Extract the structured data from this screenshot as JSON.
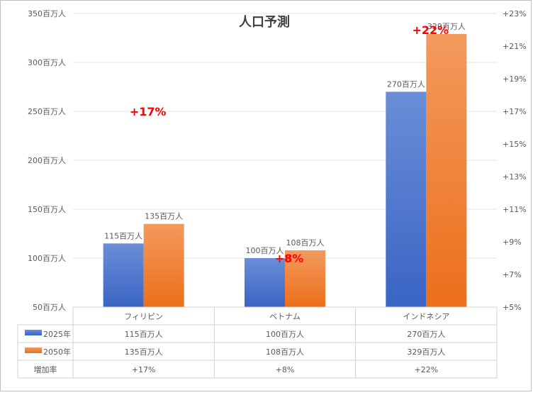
{
  "chart_data": {
    "type": "bar",
    "title": "人口予測",
    "categories": [
      "フィリピン",
      "ベトナム",
      "インドネシア"
    ],
    "series": [
      {
        "name": "2025年",
        "values": [
          115,
          100,
          270
        ],
        "labels": [
          "115百万人",
          "100百万人",
          "270百万人"
        ],
        "color_top": "#6a8ed6",
        "color_bottom": "#3a64c4"
      },
      {
        "name": "2050年",
        "values": [
          135,
          108,
          329
        ],
        "labels": [
          "135百万人",
          "108百万人",
          "329百万人"
        ],
        "color_top": "#f39a5e",
        "color_bottom": "#ec6f1a"
      }
    ],
    "growth_rate": {
      "name": "増加率",
      "values": [
        17,
        8,
        22
      ],
      "labels": [
        "+17%",
        "+8%",
        "+22%"
      ],
      "color": "#ff0000"
    },
    "ylim": [
      50,
      350
    ],
    "y_ticks": [
      50,
      100,
      150,
      200,
      250,
      300,
      350
    ],
    "y_tick_labels": [
      "50百万人",
      "100百万人",
      "150百万人",
      "200百万人",
      "250百万人",
      "300百万人",
      "350百万人"
    ],
    "y2lim": [
      5,
      23
    ],
    "y2_ticks": [
      5,
      7,
      9,
      11,
      13,
      15,
      17,
      19,
      21,
      23
    ],
    "y2_tick_labels": [
      "+5%",
      "+7%",
      "+9%",
      "+11%",
      "+13%",
      "+15%",
      "+17%",
      "+19%",
      "+21%",
      "+23%"
    ],
    "grid": true,
    "table": {
      "rows": [
        {
          "label": "2025年",
          "cells": [
            "115百万人",
            "100百万人",
            "270百万人"
          ]
        },
        {
          "label": "2050年",
          "cells": [
            "135百万人",
            "108百万人",
            "329百万人"
          ]
        },
        {
          "label": "増加率",
          "cells": [
            "+17%",
            "+8%",
            "+22%"
          ]
        }
      ]
    }
  }
}
